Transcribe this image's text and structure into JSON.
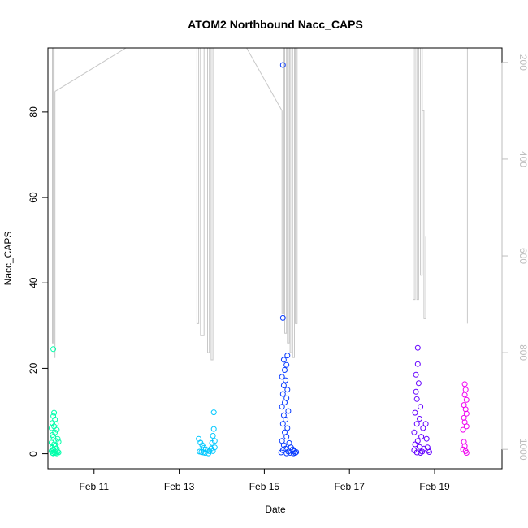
{
  "chart_data": {
    "type": "scatter",
    "title": "ATOM2 Northbound Nacc_CAPS",
    "xlabel": "Date",
    "ylabel": "Nacc_CAPS",
    "xlim": [
      "2017-02-09T22:00",
      "2017-02-20T14:00"
    ],
    "ylim": [
      -3.5,
      95
    ],
    "x_ticks": [
      {
        "date": "2017-02-11",
        "label": "Feb 11"
      },
      {
        "date": "2017-02-13",
        "label": "Feb 13"
      },
      {
        "date": "2017-02-15",
        "label": "Feb 15"
      },
      {
        "date": "2017-02-17",
        "label": "Feb 17"
      },
      {
        "date": "2017-02-19",
        "label": "Feb 19"
      }
    ],
    "y_ticks": [
      0,
      20,
      40,
      60,
      80
    ],
    "secondary_axis": {
      "reversed": true,
      "ylim": [
        1040,
        170
      ],
      "ticks": [
        200,
        400,
        600,
        800,
        1000
      ],
      "color": "#bdbdbd"
    },
    "series": [
      {
        "color": "#00ffaa",
        "points": [
          [
            "2017-02-10T01:00",
            24.5
          ],
          [
            "2017-02-10T01:30",
            9.6
          ],
          [
            "2017-02-10T01:00",
            8.8
          ],
          [
            "2017-02-10T02:00",
            8.0
          ],
          [
            "2017-02-10T00:30",
            7.2
          ],
          [
            "2017-02-10T02:30",
            7.0
          ],
          [
            "2017-02-10T01:30",
            6.4
          ],
          [
            "2017-02-10T00:00",
            6.0
          ],
          [
            "2017-02-10T03:00",
            5.6
          ],
          [
            "2017-02-10T02:00",
            5.0
          ],
          [
            "2017-02-10T00:30",
            4.4
          ],
          [
            "2017-02-10T01:00",
            4.0
          ],
          [
            "2017-02-10T03:30",
            3.5
          ],
          [
            "2017-02-10T02:30",
            3.0
          ],
          [
            "2017-02-10T00:00",
            2.6
          ],
          [
            "2017-02-10T01:30",
            2.2
          ],
          [
            "2017-02-10T04:00",
            2.8
          ],
          [
            "2017-02-10T02:00",
            1.8
          ],
          [
            "2017-02-10T00:30",
            1.4
          ],
          [
            "2017-02-10T03:00",
            1.2
          ],
          [
            "2017-02-10T01:00",
            1.0
          ],
          [
            "2017-02-10T02:30",
            0.8
          ],
          [
            "2017-02-10T00:00",
            0.6
          ],
          [
            "2017-02-10T03:30",
            0.5
          ],
          [
            "2017-02-10T01:30",
            0.4
          ],
          [
            "2017-02-10T04:00",
            0.3
          ],
          [
            "2017-02-10T02:00",
            0.2
          ],
          [
            "2017-02-10T00:30",
            0.2
          ],
          [
            "2017-02-10T03:00",
            0.1
          ],
          [
            "2017-02-10T01:00",
            0.1
          ]
        ]
      },
      {
        "color": "#00c8ff",
        "points": [
          [
            "2017-02-13T11:00",
            3.5
          ],
          [
            "2017-02-13T12:00",
            2.6
          ],
          [
            "2017-02-13T13:00",
            2.0
          ],
          [
            "2017-02-13T14:00",
            1.4
          ],
          [
            "2017-02-13T15:00",
            1.0
          ],
          [
            "2017-02-13T16:00",
            0.8
          ],
          [
            "2017-02-13T17:00",
            0.6
          ],
          [
            "2017-02-13T11:30",
            0.5
          ],
          [
            "2017-02-13T12:30",
            0.4
          ],
          [
            "2017-02-13T13:30",
            0.3
          ],
          [
            "2017-02-13T14:30",
            0.2
          ],
          [
            "2017-02-13T16:30",
            0.1
          ],
          [
            "2017-02-13T18:00",
            1.2
          ],
          [
            "2017-02-13T18:30",
            2.5
          ],
          [
            "2017-02-13T19:00",
            4.2
          ],
          [
            "2017-02-13T19:30",
            5.8
          ],
          [
            "2017-02-13T19:30",
            9.7
          ],
          [
            "2017-02-13T20:00",
            3.0
          ],
          [
            "2017-02-13T20:00",
            1.5
          ],
          [
            "2017-02-13T19:00",
            0.6
          ]
        ]
      },
      {
        "color": "#0a3cff",
        "points": [
          [
            "2017-02-15T10:30",
            91.0
          ],
          [
            "2017-02-15T10:30",
            31.8
          ],
          [
            "2017-02-15T13:00",
            23.0
          ],
          [
            "2017-02-15T11:00",
            22.0
          ],
          [
            "2017-02-15T12:30",
            20.8
          ],
          [
            "2017-02-15T11:30",
            19.6
          ],
          [
            "2017-02-15T10:00",
            18.0
          ],
          [
            "2017-02-15T12:00",
            17.2
          ],
          [
            "2017-02-15T11:00",
            16.0
          ],
          [
            "2017-02-15T13:00",
            15.0
          ],
          [
            "2017-02-15T10:30",
            14.0
          ],
          [
            "2017-02-15T12:30",
            13.0
          ],
          [
            "2017-02-15T11:30",
            12.0
          ],
          [
            "2017-02-15T10:00",
            11.0
          ],
          [
            "2017-02-15T13:30",
            10.0
          ],
          [
            "2017-02-15T11:00",
            9.0
          ],
          [
            "2017-02-15T12:00",
            8.0
          ],
          [
            "2017-02-15T10:30",
            7.0
          ],
          [
            "2017-02-15T13:00",
            6.0
          ],
          [
            "2017-02-15T11:30",
            5.0
          ],
          [
            "2017-02-15T12:30",
            4.0
          ],
          [
            "2017-02-15T10:00",
            3.0
          ],
          [
            "2017-02-15T14:00",
            2.5
          ],
          [
            "2017-02-15T11:00",
            2.0
          ],
          [
            "2017-02-15T15:00",
            1.5
          ],
          [
            "2017-02-15T12:00",
            1.2
          ],
          [
            "2017-02-15T16:00",
            1.0
          ],
          [
            "2017-02-15T10:30",
            0.8
          ],
          [
            "2017-02-15T17:00",
            0.6
          ],
          [
            "2017-02-15T13:30",
            0.5
          ],
          [
            "2017-02-15T18:00",
            0.4
          ],
          [
            "2017-02-15T09:30",
            0.3
          ],
          [
            "2017-02-15T14:30",
            0.2
          ],
          [
            "2017-02-15T17:30",
            0.2
          ],
          [
            "2017-02-15T12:30",
            0.1
          ],
          [
            "2017-02-15T16:30",
            0.1
          ]
        ]
      },
      {
        "color": "#6400ff",
        "points": [
          [
            "2017-02-18T14:30",
            24.8
          ],
          [
            "2017-02-18T14:30",
            21.0
          ],
          [
            "2017-02-18T13:30",
            18.5
          ],
          [
            "2017-02-18T15:00",
            16.5
          ],
          [
            "2017-02-18T13:30",
            14.5
          ],
          [
            "2017-02-18T14:00",
            12.8
          ],
          [
            "2017-02-18T16:00",
            11.0
          ],
          [
            "2017-02-18T13:00",
            9.6
          ],
          [
            "2017-02-18T15:30",
            8.2
          ],
          [
            "2017-02-18T14:00",
            7.0
          ],
          [
            "2017-02-18T17:30",
            6.0
          ],
          [
            "2017-02-18T12:30",
            5.0
          ],
          [
            "2017-02-18T16:30",
            4.0
          ],
          [
            "2017-02-18T14:30",
            3.0
          ],
          [
            "2017-02-18T13:00",
            2.2
          ],
          [
            "2017-02-18T15:30",
            1.6
          ],
          [
            "2017-02-18T18:00",
            1.2
          ],
          [
            "2017-02-18T12:30",
            0.8
          ],
          [
            "2017-02-18T17:00",
            0.5
          ],
          [
            "2017-02-18T14:00",
            0.3
          ],
          [
            "2017-02-18T16:00",
            0.2
          ],
          [
            "2017-02-18T19:00",
            7.0
          ],
          [
            "2017-02-18T19:30",
            3.5
          ],
          [
            "2017-02-18T20:00",
            1.5
          ],
          [
            "2017-02-18T20:30",
            0.8
          ],
          [
            "2017-02-18T21:00",
            0.4
          ]
        ]
      },
      {
        "color": "#f000f0",
        "points": [
          [
            "2017-02-19T17:00",
            16.3
          ],
          [
            "2017-02-19T17:30",
            15.0
          ],
          [
            "2017-02-19T17:00",
            13.8
          ],
          [
            "2017-02-19T18:00",
            12.6
          ],
          [
            "2017-02-19T16:30",
            11.4
          ],
          [
            "2017-02-19T17:30",
            10.4
          ],
          [
            "2017-02-19T18:00",
            9.4
          ],
          [
            "2017-02-19T16:30",
            8.4
          ],
          [
            "2017-02-19T17:00",
            7.4
          ],
          [
            "2017-02-19T18:00",
            6.4
          ],
          [
            "2017-02-19T16:00",
            5.6
          ],
          [
            "2017-02-19T16:30",
            2.8
          ],
          [
            "2017-02-19T17:00",
            1.8
          ],
          [
            "2017-02-19T16:00",
            1.0
          ],
          [
            "2017-02-19T17:30",
            0.6
          ],
          [
            "2017-02-19T18:00",
            0.2
          ]
        ]
      }
    ],
    "altitude_trace": {
      "color": "#c8c8c8",
      "segments": [
        [
          [
            "2017-02-10T00:30",
            170
          ],
          [
            "2017-02-10T00:30",
            780
          ],
          [
            "2017-02-10T01:00",
            780
          ],
          [
            "2017-02-10T01:00",
            170
          ]
        ],
        [
          [
            "2017-02-10T01:30",
            170
          ],
          [
            "2017-02-10T01:30",
            810
          ],
          [
            "2017-02-10T02:00",
            810
          ],
          [
            "2017-02-10T02:00",
            260
          ]
        ],
        [
          [
            "2017-02-10T02:00",
            260
          ],
          [
            "2017-02-11T18:00",
            170
          ]
        ],
        [
          [
            "2017-02-13T10:00",
            170
          ],
          [
            "2017-02-13T10:00",
            740
          ],
          [
            "2017-02-13T11:00",
            740
          ],
          [
            "2017-02-13T11:00",
            170
          ]
        ],
        [
          [
            "2017-02-13T12:00",
            170
          ],
          [
            "2017-02-13T12:00",
            765
          ],
          [
            "2017-02-13T14:00",
            765
          ],
          [
            "2017-02-13T14:00",
            170
          ]
        ],
        [
          [
            "2017-02-13T16:00",
            170
          ],
          [
            "2017-02-13T16:00",
            800
          ],
          [
            "2017-02-13T17:00",
            800
          ],
          [
            "2017-02-13T17:00",
            170
          ]
        ],
        [
          [
            "2017-02-13T18:00",
            170
          ],
          [
            "2017-02-13T18:00",
            815
          ],
          [
            "2017-02-13T19:00",
            815
          ],
          [
            "2017-02-13T19:00",
            170
          ]
        ],
        [
          [
            "2017-02-14T14:00",
            170
          ],
          [
            "2017-02-15T10:00",
            300
          ]
        ],
        [
          [
            "2017-02-15T10:00",
            300
          ],
          [
            "2017-02-15T10:00",
            720
          ],
          [
            "2017-02-15T11:00",
            720
          ],
          [
            "2017-02-15T11:00",
            170
          ]
        ],
        [
          [
            "2017-02-15T11:30",
            170
          ],
          [
            "2017-02-15T11:30",
            760
          ],
          [
            "2017-02-15T12:30",
            760
          ],
          [
            "2017-02-15T12:30",
            170
          ]
        ],
        [
          [
            "2017-02-15T13:00",
            170
          ],
          [
            "2017-02-15T13:00",
            780
          ],
          [
            "2017-02-15T14:00",
            780
          ],
          [
            "2017-02-15T14:00",
            170
          ]
        ],
        [
          [
            "2017-02-15T14:30",
            170
          ],
          [
            "2017-02-15T14:30",
            800
          ],
          [
            "2017-02-15T15:30",
            800
          ],
          [
            "2017-02-15T15:30",
            170
          ]
        ],
        [
          [
            "2017-02-15T16:00",
            170
          ],
          [
            "2017-02-15T16:00",
            810
          ],
          [
            "2017-02-15T17:00",
            810
          ],
          [
            "2017-02-15T17:00",
            170
          ]
        ],
        [
          [
            "2017-02-15T17:30",
            170
          ],
          [
            "2017-02-15T17:30",
            740
          ],
          [
            "2017-02-15T18:30",
            740
          ],
          [
            "2017-02-15T18:30",
            170
          ]
        ],
        [
          [
            "2017-02-18T12:00",
            170
          ],
          [
            "2017-02-18T12:00",
            690
          ],
          [
            "2017-02-18T13:00",
            690
          ],
          [
            "2017-02-18T13:00",
            170
          ]
        ],
        [
          [
            "2017-02-18T14:00",
            170
          ],
          [
            "2017-02-18T14:00",
            690
          ],
          [
            "2017-02-18T15:00",
            690
          ],
          [
            "2017-02-18T15:00",
            170
          ]
        ],
        [
          [
            "2017-02-18T16:00",
            170
          ],
          [
            "2017-02-18T16:00",
            640
          ],
          [
            "2017-02-18T17:00",
            640
          ],
          [
            "2017-02-18T17:00",
            170
          ]
        ],
        [
          [
            "2017-02-18T17:00",
            170
          ],
          [
            "2017-02-18T17:00",
            300
          ],
          [
            "2017-02-18T18:00",
            300
          ],
          [
            "2017-02-18T18:00",
            730
          ],
          [
            "2017-02-18T19:00",
            730
          ],
          [
            "2017-02-18T19:00",
            560
          ]
        ],
        [
          [
            "2017-02-19T18:30",
            170
          ],
          [
            "2017-02-19T18:30",
            740
          ]
        ]
      ]
    },
    "grid": false,
    "legend": "none"
  }
}
